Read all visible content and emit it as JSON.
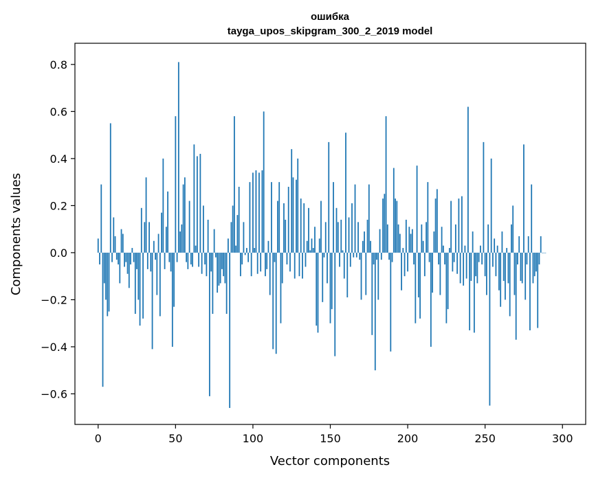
{
  "chart_data": {
    "type": "bar",
    "title": "ошибка",
    "subtitle": "tayga_upos_skipgram_300_2_2019 model",
    "xlabel": "Vector components",
    "ylabel": "Components values",
    "xlim": [
      -15,
      315
    ],
    "ylim": [
      -0.73,
      0.89
    ],
    "xticks": [
      0,
      50,
      100,
      150,
      200,
      250,
      300
    ],
    "xtick_labels": [
      "0",
      "50",
      "100",
      "150",
      "200",
      "250",
      "300"
    ],
    "yticks": [
      -0.6,
      -0.4,
      -0.2,
      0.0,
      0.2,
      0.4,
      0.6,
      0.8
    ],
    "ytick_labels": [
      "−0.6",
      "−0.4",
      "−0.2",
      "0.0",
      "0.2",
      "0.4",
      "0.6",
      "0.8"
    ],
    "bar_color": "#1f77b4",
    "values": [
      0.06,
      -0.05,
      0.29,
      -0.57,
      -0.13,
      -0.2,
      -0.27,
      -0.25,
      0.55,
      -0.04,
      0.15,
      0.07,
      -0.03,
      -0.05,
      -0.13,
      0.1,
      0.08,
      -0.06,
      -0.04,
      -0.09,
      -0.15,
      -0.05,
      0.02,
      -0.04,
      -0.26,
      -0.07,
      -0.2,
      -0.31,
      0.19,
      -0.28,
      0.13,
      0.32,
      -0.07,
      0.13,
      -0.08,
      -0.41,
      0.05,
      -0.03,
      -0.18,
      0.08,
      -0.27,
      0.17,
      0.4,
      -0.07,
      0.11,
      0.26,
      -0.04,
      -0.08,
      -0.4,
      -0.23,
      0.58,
      -0.04,
      0.81,
      0.09,
      0.12,
      0.29,
      0.32,
      -0.04,
      -0.07,
      0.22,
      -0.05,
      -0.06,
      0.46,
      0.03,
      0.41,
      -0.06,
      0.42,
      -0.09,
      0.2,
      -0.05,
      -0.1,
      0.14,
      -0.61,
      -0.08,
      -0.26,
      0.1,
      -0.02,
      -0.17,
      -0.14,
      -0.13,
      -0.07,
      -0.1,
      -0.13,
      -0.26,
      0.06,
      -0.66,
      0.13,
      0.2,
      0.58,
      0.03,
      0.16,
      0.28,
      -0.1,
      -0.05,
      0.13,
      -0.01,
      0.02,
      -0.04,
      0.3,
      -0.1,
      0.34,
      0.02,
      0.35,
      -0.09,
      0.34,
      -0.08,
      0.35,
      0.6,
      -0.1,
      -0.07,
      0.05,
      -0.18,
      0.3,
      -0.41,
      -0.04,
      -0.43,
      0.22,
      0.3,
      -0.3,
      -0.13,
      0.21,
      0.14,
      -0.05,
      0.28,
      -0.08,
      0.44,
      0.32,
      -0.11,
      0.31,
      0.4,
      -0.1,
      0.23,
      -0.11,
      0.21,
      -0.06,
      0.05,
      0.19,
      0.01,
      0.06,
      0.02,
      0.11,
      -0.31,
      -0.34,
      0.06,
      0.22,
      -0.21,
      -0.02,
      0.13,
      -0.13,
      0.47,
      -0.3,
      -0.24,
      0.3,
      -0.44,
      0.19,
      0.13,
      -0.06,
      0.14,
      0.01,
      -0.11,
      0.51,
      -0.19,
      0.15,
      -0.06,
      0.21,
      -0.02,
      0.29,
      -0.02,
      0.13,
      -0.03,
      -0.2,
      0.05,
      0.09,
      -0.18,
      0.14,
      0.29,
      0.05,
      -0.35,
      -0.05,
      -0.5,
      -0.03,
      -0.2,
      0.1,
      -0.03,
      0.23,
      0.25,
      0.58,
      0.12,
      -0.03,
      -0.42,
      -0.04,
      0.36,
      0.23,
      0.22,
      0.12,
      0.08,
      -0.16,
      0.02,
      -0.1,
      0.14,
      -0.08,
      0.11,
      0.08,
      0.1,
      -0.05,
      -0.3,
      0.37,
      -0.19,
      -0.28,
      0.12,
      0.05,
      -0.1,
      0.13,
      0.3,
      -0.04,
      -0.4,
      -0.17,
      0.09,
      0.23,
      0.27,
      -0.05,
      -0.18,
      0.11,
      0.03,
      -0.05,
      -0.3,
      -0.24,
      0.02,
      0.22,
      -0.08,
      -0.04,
      0.12,
      -0.09,
      0.23,
      -0.13,
      0.24,
      -0.14,
      0.03,
      -0.11,
      0.62,
      -0.33,
      -0.12,
      0.09,
      -0.34,
      -0.1,
      -0.13,
      -0.04,
      0.03,
      -0.05,
      0.47,
      -0.1,
      -0.18,
      0.12,
      -0.65,
      0.4,
      -0.06,
      0.06,
      -0.1,
      0.03,
      -0.16,
      -0.23,
      0.09,
      -0.12,
      -0.2,
      0.02,
      -0.13,
      -0.27,
      0.12,
      0.2,
      -0.18,
      -0.37,
      -0.05,
      0.07,
      -0.12,
      -0.13,
      0.46,
      -0.2,
      -0.05,
      0.07,
      -0.33,
      0.29,
      -0.13,
      -0.1,
      -0.08,
      -0.32,
      -0.05,
      0.07,
      0.0,
      0.0,
      0.0
    ]
  }
}
